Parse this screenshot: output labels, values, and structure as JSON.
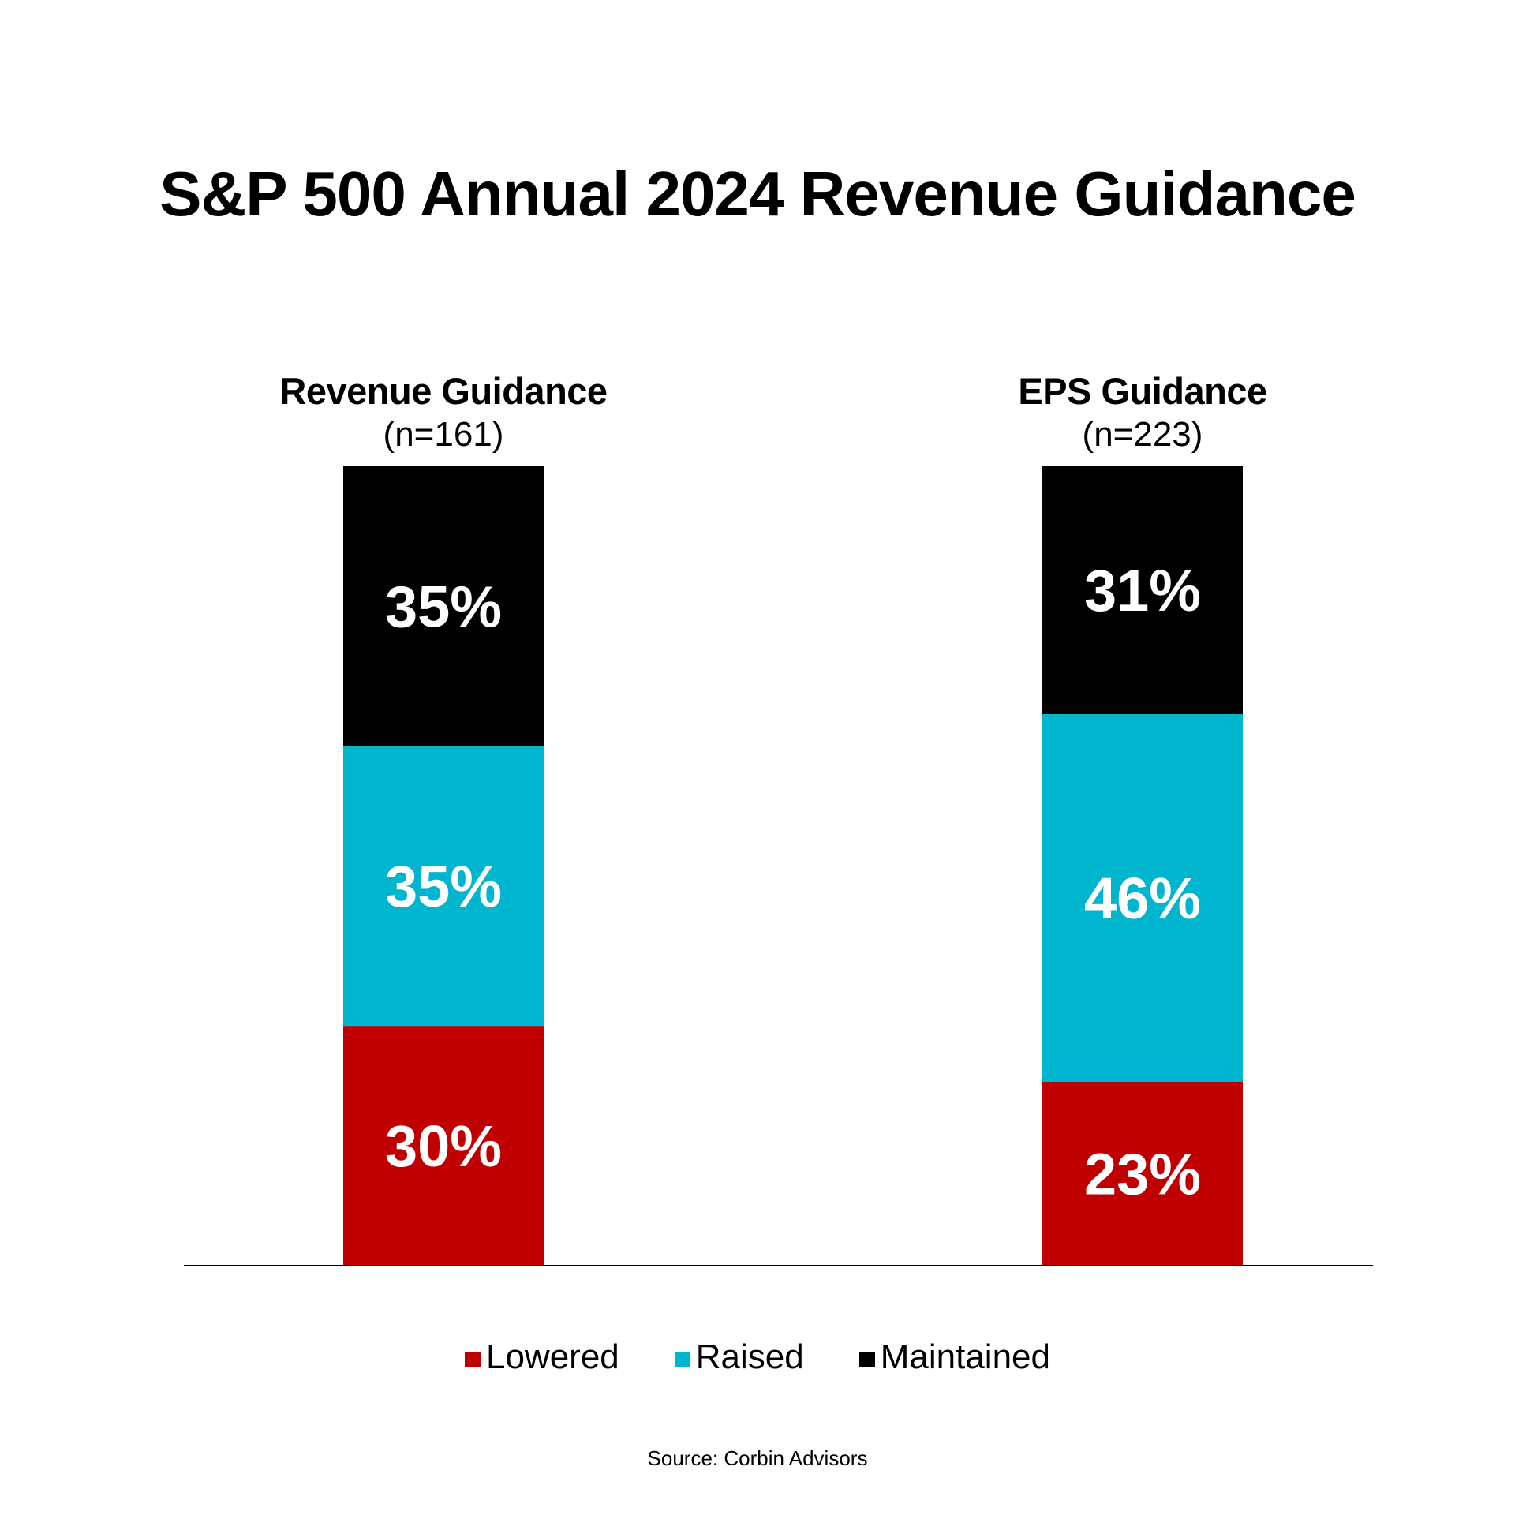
{
  "chart_data": {
    "type": "bar",
    "stacked": true,
    "title": "S&P 500 Annual 2024 Revenue Guidance",
    "categories": [
      {
        "name": "Revenue Guidance",
        "n_label": "(n=161)"
      },
      {
        "name": "EPS Guidance",
        "n_label": "(n=223)"
      }
    ],
    "series": [
      {
        "name": "Lowered",
        "color": "#C00000",
        "values": [
          30,
          23
        ],
        "labels": [
          "30%",
          "23%"
        ]
      },
      {
        "name": "Raised",
        "color": "#00B5CE",
        "values": [
          35,
          46
        ],
        "labels": [
          "35%",
          "46%"
        ]
      },
      {
        "name": "Maintained",
        "color": "#000000",
        "values": [
          35,
          31
        ],
        "labels": [
          "35%",
          "31%"
        ]
      }
    ],
    "xlabel": "",
    "ylabel": "",
    "ylim": [
      0,
      100
    ],
    "grid": false,
    "legend_position": "bottom-center",
    "source": "Source: Corbin Advisors"
  }
}
